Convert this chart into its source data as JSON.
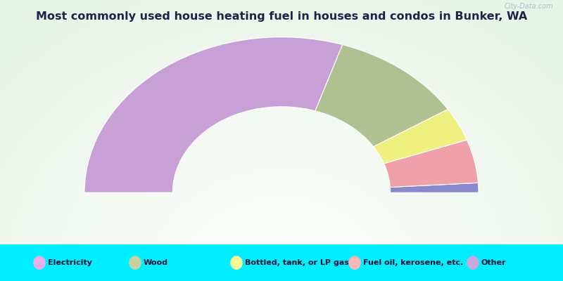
{
  "title": "Most commonly used house heating fuel in houses and condos in Bunker, WA",
  "title_fontsize": 11.5,
  "title_color": "#222244",
  "bg_color": "#00eeff",
  "chart_bg_color": "#e8f5e8",
  "segments_order": [
    "Electricity",
    "Fuel oil, kerosene, etc.",
    "Bottled, tank, or LP gas",
    "Wood",
    "Other"
  ],
  "segments": [
    {
      "label": "Electricity",
      "value": 2.0,
      "color": "#8888cc"
    },
    {
      "label": "Fuel oil, kerosene, etc.",
      "value": 9.0,
      "color": "#f0a0a8"
    },
    {
      "label": "Bottled, tank, or LP gas",
      "value": 7.0,
      "color": "#f0f080"
    },
    {
      "label": "Wood",
      "value": 22.0,
      "color": "#b0c090"
    },
    {
      "label": "Other",
      "value": 60.0,
      "color": "#c8a0d8"
    }
  ],
  "legend_items": [
    {
      "label": "Electricity",
      "color": "#e8b0e8"
    },
    {
      "label": "Wood",
      "color": "#c8d0a0"
    },
    {
      "label": "Bottled, tank, or LP gas",
      "color": "#f8f898"
    },
    {
      "label": "Fuel oil, kerosene, etc.",
      "color": "#f8b8b8"
    },
    {
      "label": "Other",
      "color": "#c8a8e0"
    }
  ],
  "outer_r": 1.05,
  "inner_r": 0.58,
  "watermark": "City-Data.com"
}
